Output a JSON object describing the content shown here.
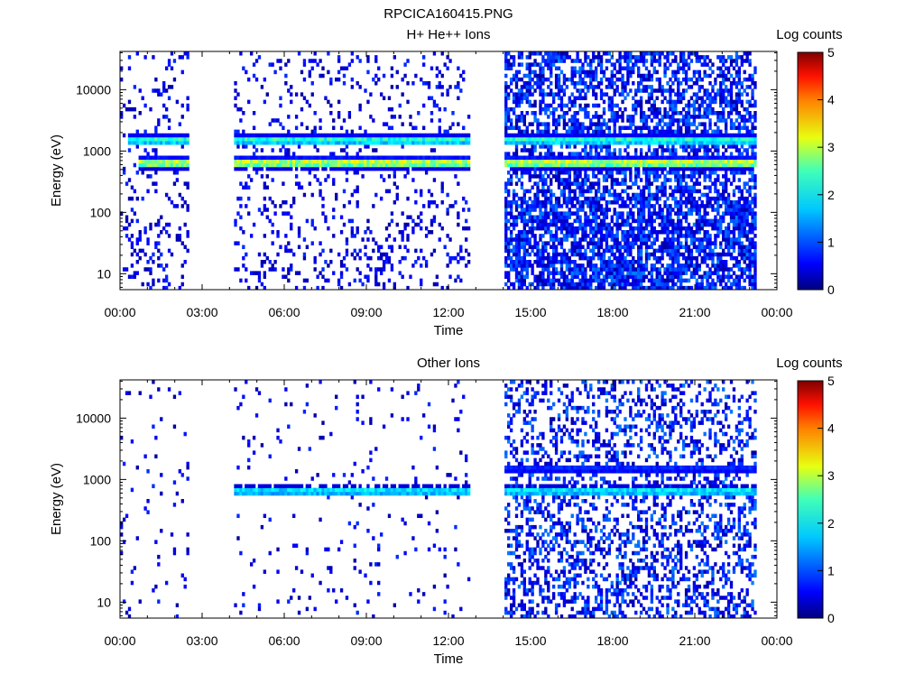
{
  "figure_title": "RPCICA160415.PNG",
  "colorbar": {
    "label": "Log counts",
    "ticks": [
      "0",
      "1",
      "2",
      "3",
      "4",
      "5"
    ],
    "range": [
      0,
      5
    ],
    "colormap": "jet"
  },
  "chart_data": [
    {
      "type": "heatmap",
      "title": "H+ He++ Ions",
      "xlabel": "Time",
      "ylabel": "Energy (eV)",
      "x_ticks": [
        "00:00",
        "03:00",
        "06:00",
        "09:00",
        "12:00",
        "15:00",
        "18:00",
        "21:00",
        "00:00"
      ],
      "y_ticks": [
        "10",
        "100",
        "1000",
        "10000"
      ],
      "x_range_hours": [
        0,
        24
      ],
      "y_range_eV": [
        5.5,
        42000
      ],
      "y_scale": "log",
      "data_gaps_hours": [
        [
          2.5,
          4.1
        ],
        [
          12.75,
          14.0
        ]
      ],
      "data_end_hour": 23.25,
      "bands": [
        {
          "name": "upper",
          "start_hour": 0.2,
          "end_hour": 23.25,
          "energy_eV": 1400,
          "peak_log_counts": 2.3
        },
        {
          "name": "main",
          "start_hour": 0.6,
          "end_hour": 23.25,
          "energy_eV": 600,
          "peak_log_counts": 3.2
        }
      ],
      "background_level": "noise 0-1.5 log counts, denser after 14:00"
    },
    {
      "type": "heatmap",
      "title": "Other Ions",
      "xlabel": "Time",
      "ylabel": "Energy (eV)",
      "x_ticks": [
        "00:00",
        "03:00",
        "06:00",
        "09:00",
        "12:00",
        "15:00",
        "18:00",
        "21:00",
        "00:00"
      ],
      "y_ticks": [
        "10",
        "100",
        "1000",
        "10000"
      ],
      "x_range_hours": [
        0,
        24
      ],
      "y_range_eV": [
        5.5,
        42000
      ],
      "y_scale": "log",
      "data_gaps_hours": [
        [
          2.5,
          4.1
        ],
        [
          12.75,
          14.0
        ]
      ],
      "data_end_hour": 23.25,
      "bands": [
        {
          "name": "main",
          "start_hour": 4.1,
          "end_hour": 23.25,
          "energy_eV": 600,
          "peak_log_counts": 2.0
        },
        {
          "name": "upper",
          "start_hour": 14.0,
          "end_hour": 23.25,
          "energy_eV": 1400,
          "peak_log_counts": 0.9
        }
      ],
      "background_level": "sparse noise 0-1 log counts, denser after 14:00"
    }
  ]
}
